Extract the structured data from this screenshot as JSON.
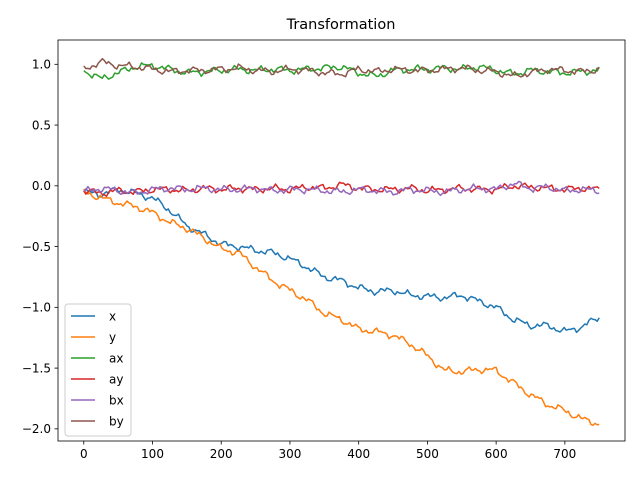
{
  "chart_data": {
    "type": "line",
    "title": "Transformation",
    "xlabel": "",
    "ylabel": "",
    "xlim": [
      -37.5,
      787.5
    ],
    "ylim": [
      -2.1,
      1.2
    ],
    "x_ticks": [
      0,
      100,
      200,
      300,
      400,
      500,
      600,
      700
    ],
    "y_ticks": [
      -2.0,
      -1.5,
      -1.0,
      -0.5,
      0.0,
      0.5,
      1.0
    ],
    "x_tick_labels": [
      "0",
      "100",
      "200",
      "300",
      "400",
      "500",
      "600",
      "700"
    ],
    "y_tick_labels": [
      "−2.0",
      "−1.5",
      "−1.0",
      "−0.5",
      "0.0",
      "0.5",
      "1.0"
    ],
    "grid": false,
    "legend_position": "lower-left",
    "x": [
      0,
      25,
      50,
      75,
      100,
      125,
      150,
      175,
      200,
      225,
      250,
      275,
      300,
      325,
      350,
      375,
      400,
      425,
      450,
      475,
      500,
      525,
      550,
      575,
      600,
      625,
      650,
      675,
      700,
      725,
      750
    ],
    "series": [
      {
        "name": "x",
        "color": "#1f77b4",
        "values": [
          -0.05,
          -0.07,
          -0.03,
          -0.06,
          -0.1,
          -0.2,
          -0.33,
          -0.4,
          -0.48,
          -0.5,
          -0.53,
          -0.55,
          -0.6,
          -0.67,
          -0.75,
          -0.78,
          -0.84,
          -0.87,
          -0.86,
          -0.9,
          -0.91,
          -0.92,
          -0.9,
          -0.95,
          -1.0,
          -1.1,
          -1.15,
          -1.15,
          -1.2,
          -1.16,
          -1.08
        ]
      },
      {
        "name": "y",
        "color": "#ff7f0e",
        "values": [
          -0.05,
          -0.1,
          -0.14,
          -0.17,
          -0.22,
          -0.3,
          -0.35,
          -0.43,
          -0.52,
          -0.55,
          -0.67,
          -0.78,
          -0.86,
          -0.94,
          -1.05,
          -1.1,
          -1.18,
          -1.2,
          -1.23,
          -1.3,
          -1.4,
          -1.52,
          -1.53,
          -1.51,
          -1.52,
          -1.62,
          -1.72,
          -1.8,
          -1.85,
          -1.92,
          -1.96
        ]
      },
      {
        "name": "ax",
        "color": "#2ca02c",
        "values": [
          0.95,
          0.88,
          0.93,
          0.98,
          0.99,
          0.96,
          0.93,
          0.94,
          0.95,
          0.96,
          0.95,
          0.96,
          0.95,
          0.96,
          0.97,
          0.98,
          0.93,
          0.9,
          0.95,
          0.96,
          0.96,
          0.97,
          0.96,
          0.98,
          0.95,
          0.92,
          0.95,
          0.94,
          0.93,
          0.94,
          0.95
        ]
      },
      {
        "name": "ay",
        "color": "#d62728",
        "values": [
          -0.04,
          -0.06,
          -0.04,
          -0.05,
          -0.03,
          -0.03,
          -0.04,
          -0.02,
          -0.03,
          -0.02,
          -0.03,
          -0.02,
          -0.03,
          -0.01,
          -0.02,
          0.01,
          -0.02,
          -0.03,
          -0.03,
          -0.02,
          -0.04,
          -0.03,
          -0.02,
          -0.03,
          -0.03,
          0.0,
          -0.01,
          -0.02,
          -0.03,
          -0.02,
          -0.03
        ]
      },
      {
        "name": "bx",
        "color": "#9467bd",
        "values": [
          -0.05,
          -0.02,
          -0.04,
          -0.06,
          -0.03,
          -0.02,
          -0.03,
          -0.02,
          -0.03,
          -0.03,
          -0.02,
          -0.04,
          -0.03,
          -0.03,
          -0.04,
          -0.05,
          -0.03,
          -0.04,
          -0.05,
          -0.03,
          -0.04,
          -0.05,
          -0.03,
          -0.02,
          -0.03,
          0.02,
          -0.02,
          -0.01,
          -0.04,
          -0.03,
          -0.04
        ]
      },
      {
        "name": "by",
        "color": "#8c564b",
        "values": [
          0.96,
          1.02,
          0.99,
          0.98,
          0.96,
          0.94,
          0.95,
          0.95,
          0.96,
          0.97,
          0.95,
          0.94,
          0.96,
          0.95,
          0.93,
          0.92,
          0.96,
          0.94,
          0.96,
          0.95,
          0.95,
          0.96,
          0.97,
          0.95,
          0.94,
          0.9,
          0.93,
          0.96,
          0.95,
          0.94,
          0.96
        ]
      }
    ]
  }
}
